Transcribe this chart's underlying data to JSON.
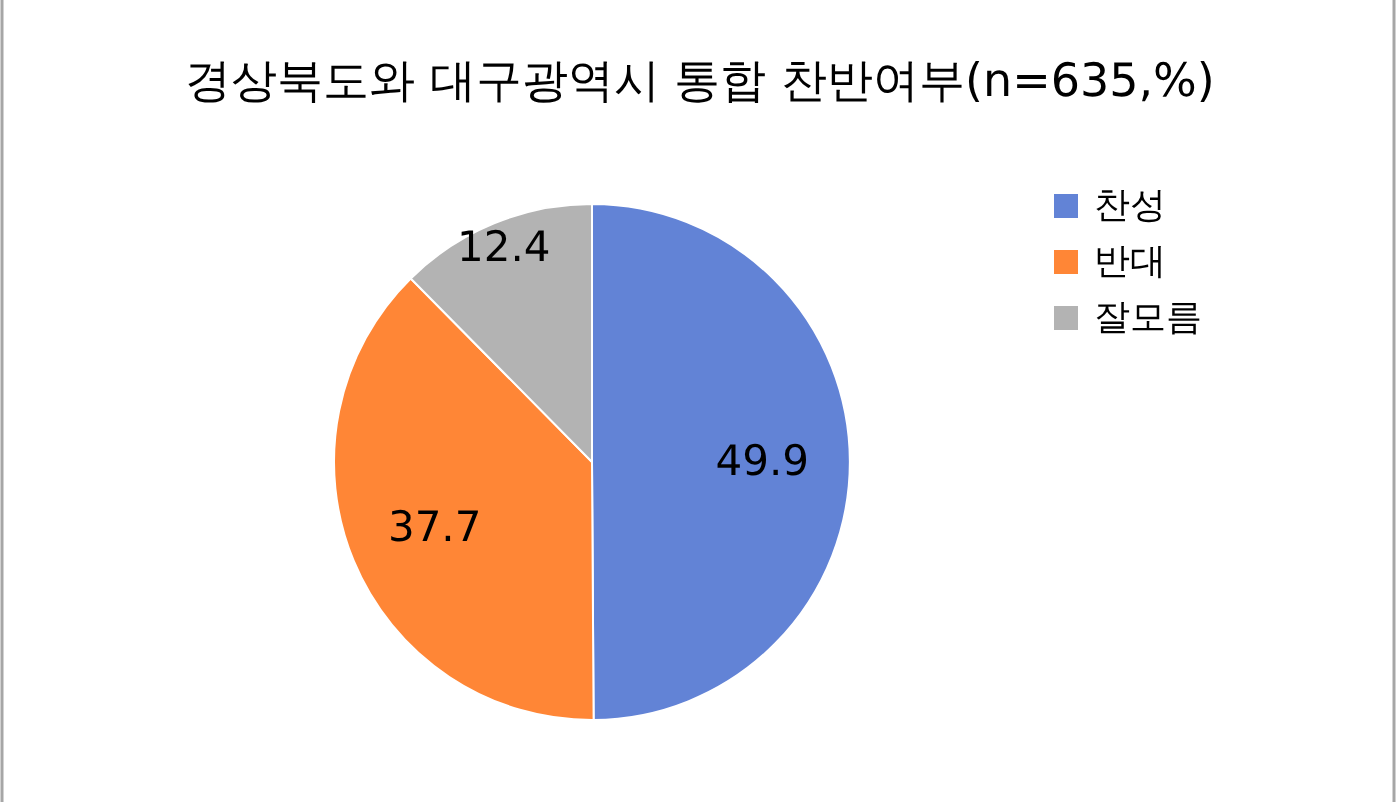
{
  "chart_data": {
    "type": "pie",
    "title": "경상북도와 대구광역시 통합 찬반여부(n=635,%)",
    "categories": [
      "찬성",
      "반대",
      "잘모름"
    ],
    "values": [
      49.9,
      37.7,
      12.4
    ],
    "colors": [
      "#6283d6",
      "#ff8636",
      "#b3b3b3"
    ],
    "data_labels": true,
    "legend": "top right"
  }
}
